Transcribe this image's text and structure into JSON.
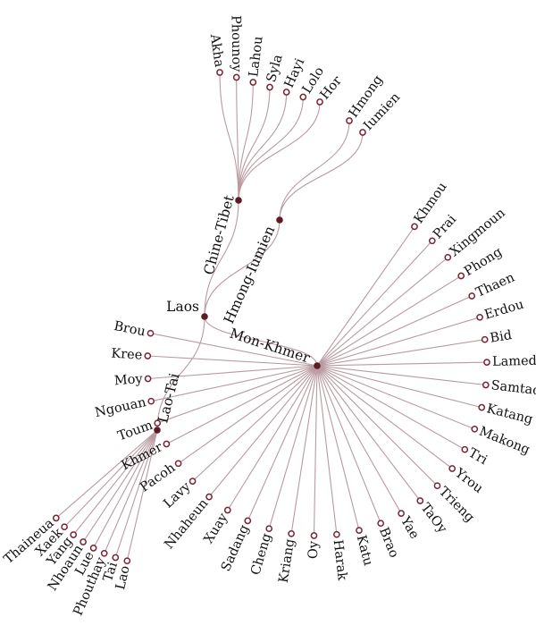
{
  "tree": {
    "name": "Laos",
    "children": [
      {
        "name": "Chine-Tibet",
        "children": [
          "Akha",
          "Phounoy",
          "Lahou",
          "Syla",
          "Hayi",
          "Lolo",
          "Hor"
        ]
      },
      {
        "name": "Hmong-Iumien",
        "children": [
          "Hmong",
          "Iumien"
        ]
      },
      {
        "name": "Mon-Khmer",
        "children": [
          "Khmou",
          "Prai",
          "Xingmoun",
          "Phong",
          "Thaen",
          "Erdou",
          "Bid",
          "Lamed",
          "Samtao",
          "Katang",
          "Makong",
          "Tri",
          "Yrou",
          "Trieng",
          "TaOy",
          "Yae",
          "Brao",
          "Katu",
          "Harak",
          "Oy",
          "Kriang",
          "Cheng",
          "Sadang",
          "Xuay",
          "Nhaheun",
          "Lavy",
          "Pacoh",
          "Khmer",
          "Toum",
          "Ngouan",
          "Moy",
          "Kree",
          "Brou"
        ]
      },
      {
        "name": "Lao-Tai",
        "children": [
          "Thaineua",
          "Xaek",
          "Yang",
          "Nhoaun",
          "Lue",
          "Phouthay",
          "Tai",
          "Lao"
        ]
      }
    ]
  },
  "colors": {
    "link": "#b89aa0",
    "internal_node": "#5e1a26",
    "leaf_node_stroke": "#7a2232",
    "text": "#111111"
  }
}
